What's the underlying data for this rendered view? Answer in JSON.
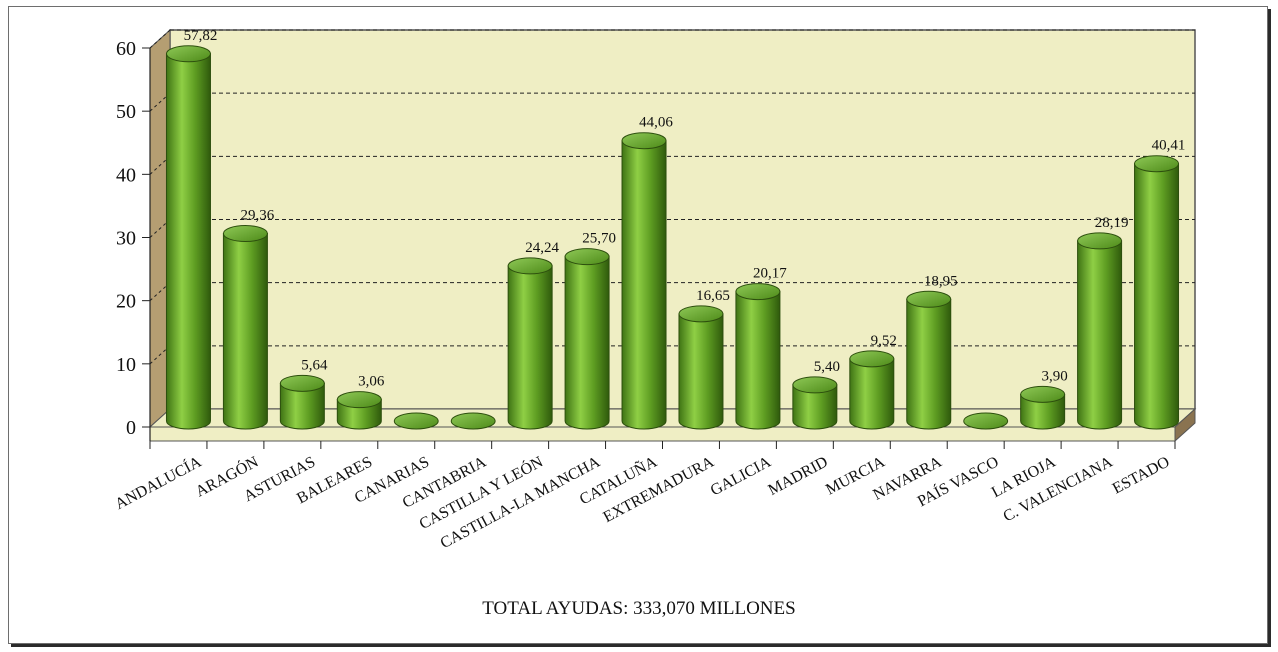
{
  "chart_data": {
    "type": "bar",
    "categories": [
      "ANDALUCÍA",
      "ARAGÓN",
      "ASTURIAS",
      "BALEARES",
      "CANARIAS",
      "CANTABRIA",
      "CASTILLA Y LEÓN",
      "CASTILLA-LA MANCHA",
      "CATALUÑA",
      "EXTREMADURA",
      "GALICIA",
      "MADRID",
      "MURCIA",
      "NAVARRA",
      "PAÍS VASCO",
      "LA RIOJA",
      "C. VALENCIANA",
      "ESTADO"
    ],
    "values": [
      57.82,
      29.36,
      5.64,
      3.06,
      0,
      0,
      24.24,
      25.7,
      44.06,
      16.65,
      20.17,
      5.4,
      9.52,
      18.95,
      0,
      3.9,
      28.19,
      40.41
    ],
    "value_labels": [
      "57,82",
      "29,36",
      "5,64",
      "3,06",
      "",
      "",
      "24,24",
      "25,70",
      "44,06",
      "16,65",
      "20,17",
      "5,40",
      "9,52",
      "18,95",
      "",
      "3,90",
      "28,19",
      "40,41"
    ],
    "yticks": [
      "0",
      "10",
      "20",
      "30",
      "40",
      "50",
      "60"
    ],
    "ylim": [
      0,
      60
    ],
    "grid": "dashed horizontal",
    "style": "3d cylinders",
    "bar_color": "#5e9d22",
    "wall_color": "#efeec4",
    "floor_color": "#efeec4",
    "edge_color": "#8a7350"
  },
  "footer": {
    "total_label": "TOTAL AYUDAS: 333,070 MILLONES"
  }
}
